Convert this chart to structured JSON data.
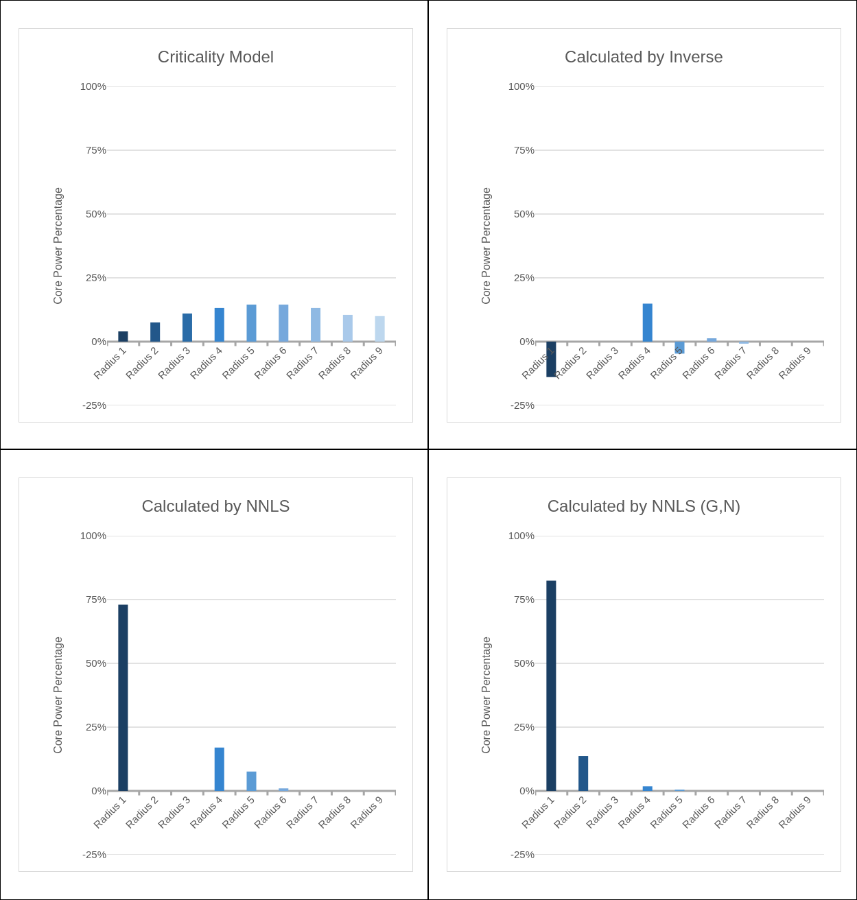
{
  "chart_data": [
    {
      "type": "bar",
      "title": "Criticality Model",
      "ylabel": "Core Power Percentage",
      "categories": [
        "Radius 1",
        "Radius 2",
        "Radius 3",
        "Radius 4",
        "Radius 5",
        "Radius 6",
        "Radius 7",
        "Radius 8",
        "Radius 9"
      ],
      "values": [
        4,
        7.5,
        11,
        13.2,
        14.5,
        14.5,
        13.2,
        10.5,
        10
      ],
      "colors": [
        "#1b3f63",
        "#22578a",
        "#2a6ca8",
        "#3585d0",
        "#5b9bd5",
        "#76a8dc",
        "#8fb9e3",
        "#a9c9ea",
        "#bdd7ee"
      ],
      "ylim": [
        -25,
        100
      ],
      "yticks": [
        {
          "value": -25,
          "label": "-25%"
        },
        {
          "value": 0,
          "label": "0%"
        },
        {
          "value": 25,
          "label": "25%"
        },
        {
          "value": 50,
          "label": "50%"
        },
        {
          "value": 75,
          "label": "75%"
        },
        {
          "value": 100,
          "label": "100%"
        }
      ],
      "grid": "y"
    },
    {
      "type": "bar",
      "title": "Calculated by Inverse",
      "ylabel": "Core Power Percentage",
      "categories": [
        "Radius 1",
        "Radius 2",
        "Radius 3",
        "Radius 4",
        "Radius 5",
        "Radius 6",
        "Radius 7",
        "Radius 8",
        "Radius 9"
      ],
      "values": [
        -13.9,
        0,
        0,
        14.9,
        -4.7,
        1.3,
        -0.8,
        0,
        0
      ],
      "colors": [
        "#1b3f63",
        "#22578a",
        "#2a6ca8",
        "#3585d0",
        "#5b9bd5",
        "#76a8dc",
        "#8fb9e3",
        "#a9c9ea",
        "#bdd7ee"
      ],
      "ylim": [
        -25,
        100
      ],
      "yticks": [
        {
          "value": -25,
          "label": "-25%"
        },
        {
          "value": 0,
          "label": "0%"
        },
        {
          "value": 25,
          "label": "25%"
        },
        {
          "value": 50,
          "label": "50%"
        },
        {
          "value": 75,
          "label": "75%"
        },
        {
          "value": 100,
          "label": "100%"
        }
      ],
      "grid": "y"
    },
    {
      "type": "bar",
      "title": "Calculated by NNLS",
      "ylabel": "Core Power Percentage",
      "categories": [
        "Radius 1",
        "Radius 2",
        "Radius 3",
        "Radius 4",
        "Radius 5",
        "Radius 6",
        "Radius 7",
        "Radius 8",
        "Radius 9"
      ],
      "values": [
        73,
        0,
        0,
        17,
        7.6,
        1,
        0,
        0,
        0
      ],
      "colors": [
        "#1b3f63",
        "#22578a",
        "#2a6ca8",
        "#3585d0",
        "#5b9bd5",
        "#76a8dc",
        "#8fb9e3",
        "#a9c9ea",
        "#bdd7ee"
      ],
      "ylim": [
        -25,
        100
      ],
      "yticks": [
        {
          "value": -25,
          "label": "-25%"
        },
        {
          "value": 0,
          "label": "0%"
        },
        {
          "value": 25,
          "label": "25%"
        },
        {
          "value": 50,
          "label": "50%"
        },
        {
          "value": 75,
          "label": "75%"
        },
        {
          "value": 100,
          "label": "100%"
        }
      ],
      "grid": "y"
    },
    {
      "type": "bar",
      "title": "Calculated by NNLS (G,N)",
      "ylabel": "Core Power Percentage",
      "categories": [
        "Radius 1",
        "Radius 2",
        "Radius 3",
        "Radius 4",
        "Radius 5",
        "Radius 6",
        "Radius 7",
        "Radius 8",
        "Radius 9"
      ],
      "values": [
        82.4,
        13.7,
        0,
        1.8,
        0.5,
        0,
        0,
        0,
        0
      ],
      "colors": [
        "#1b3f63",
        "#22578a",
        "#2a6ca8",
        "#3585d0",
        "#5b9bd5",
        "#76a8dc",
        "#8fb9e3",
        "#a9c9ea",
        "#bdd7ee"
      ],
      "ylim": [
        -25,
        100
      ],
      "yticks": [
        {
          "value": -25,
          "label": "-25%"
        },
        {
          "value": 0,
          "label": "0%"
        },
        {
          "value": 25,
          "label": "25%"
        },
        {
          "value": 50,
          "label": "50%"
        },
        {
          "value": 75,
          "label": "75%"
        },
        {
          "value": 100,
          "label": "100%"
        }
      ],
      "grid": "y"
    }
  ]
}
